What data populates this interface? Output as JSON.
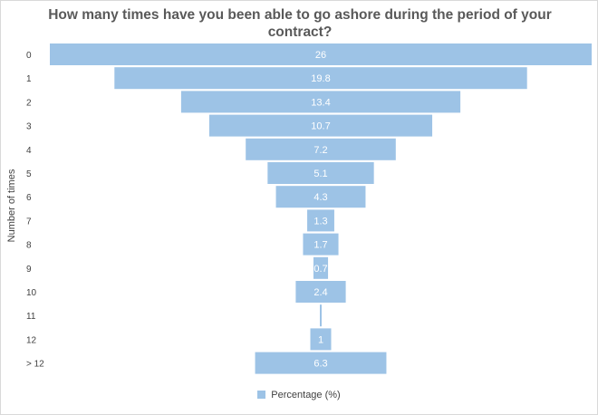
{
  "chart_data": {
    "type": "bar",
    "orientation": "horizontal-centered-funnel",
    "title": "How many times have you been able to go ashore during the period of your contract?",
    "ylabel": "Number of times",
    "xlabel": "",
    "categories": [
      "0",
      "1",
      "2",
      "3",
      "4",
      "5",
      "6",
      "7",
      "8",
      "9",
      "10",
      "11",
      "12",
      "> 12"
    ],
    "series": [
      {
        "name": "Percentage (%)",
        "values": [
          26,
          19.8,
          13.4,
          10.7,
          7.2,
          5.1,
          4.3,
          1.3,
          1.7,
          0.7,
          2.4,
          null,
          1,
          6.3
        ],
        "color": "#9dc3e6"
      }
    ],
    "legend": "bottom",
    "grid": false
  }
}
